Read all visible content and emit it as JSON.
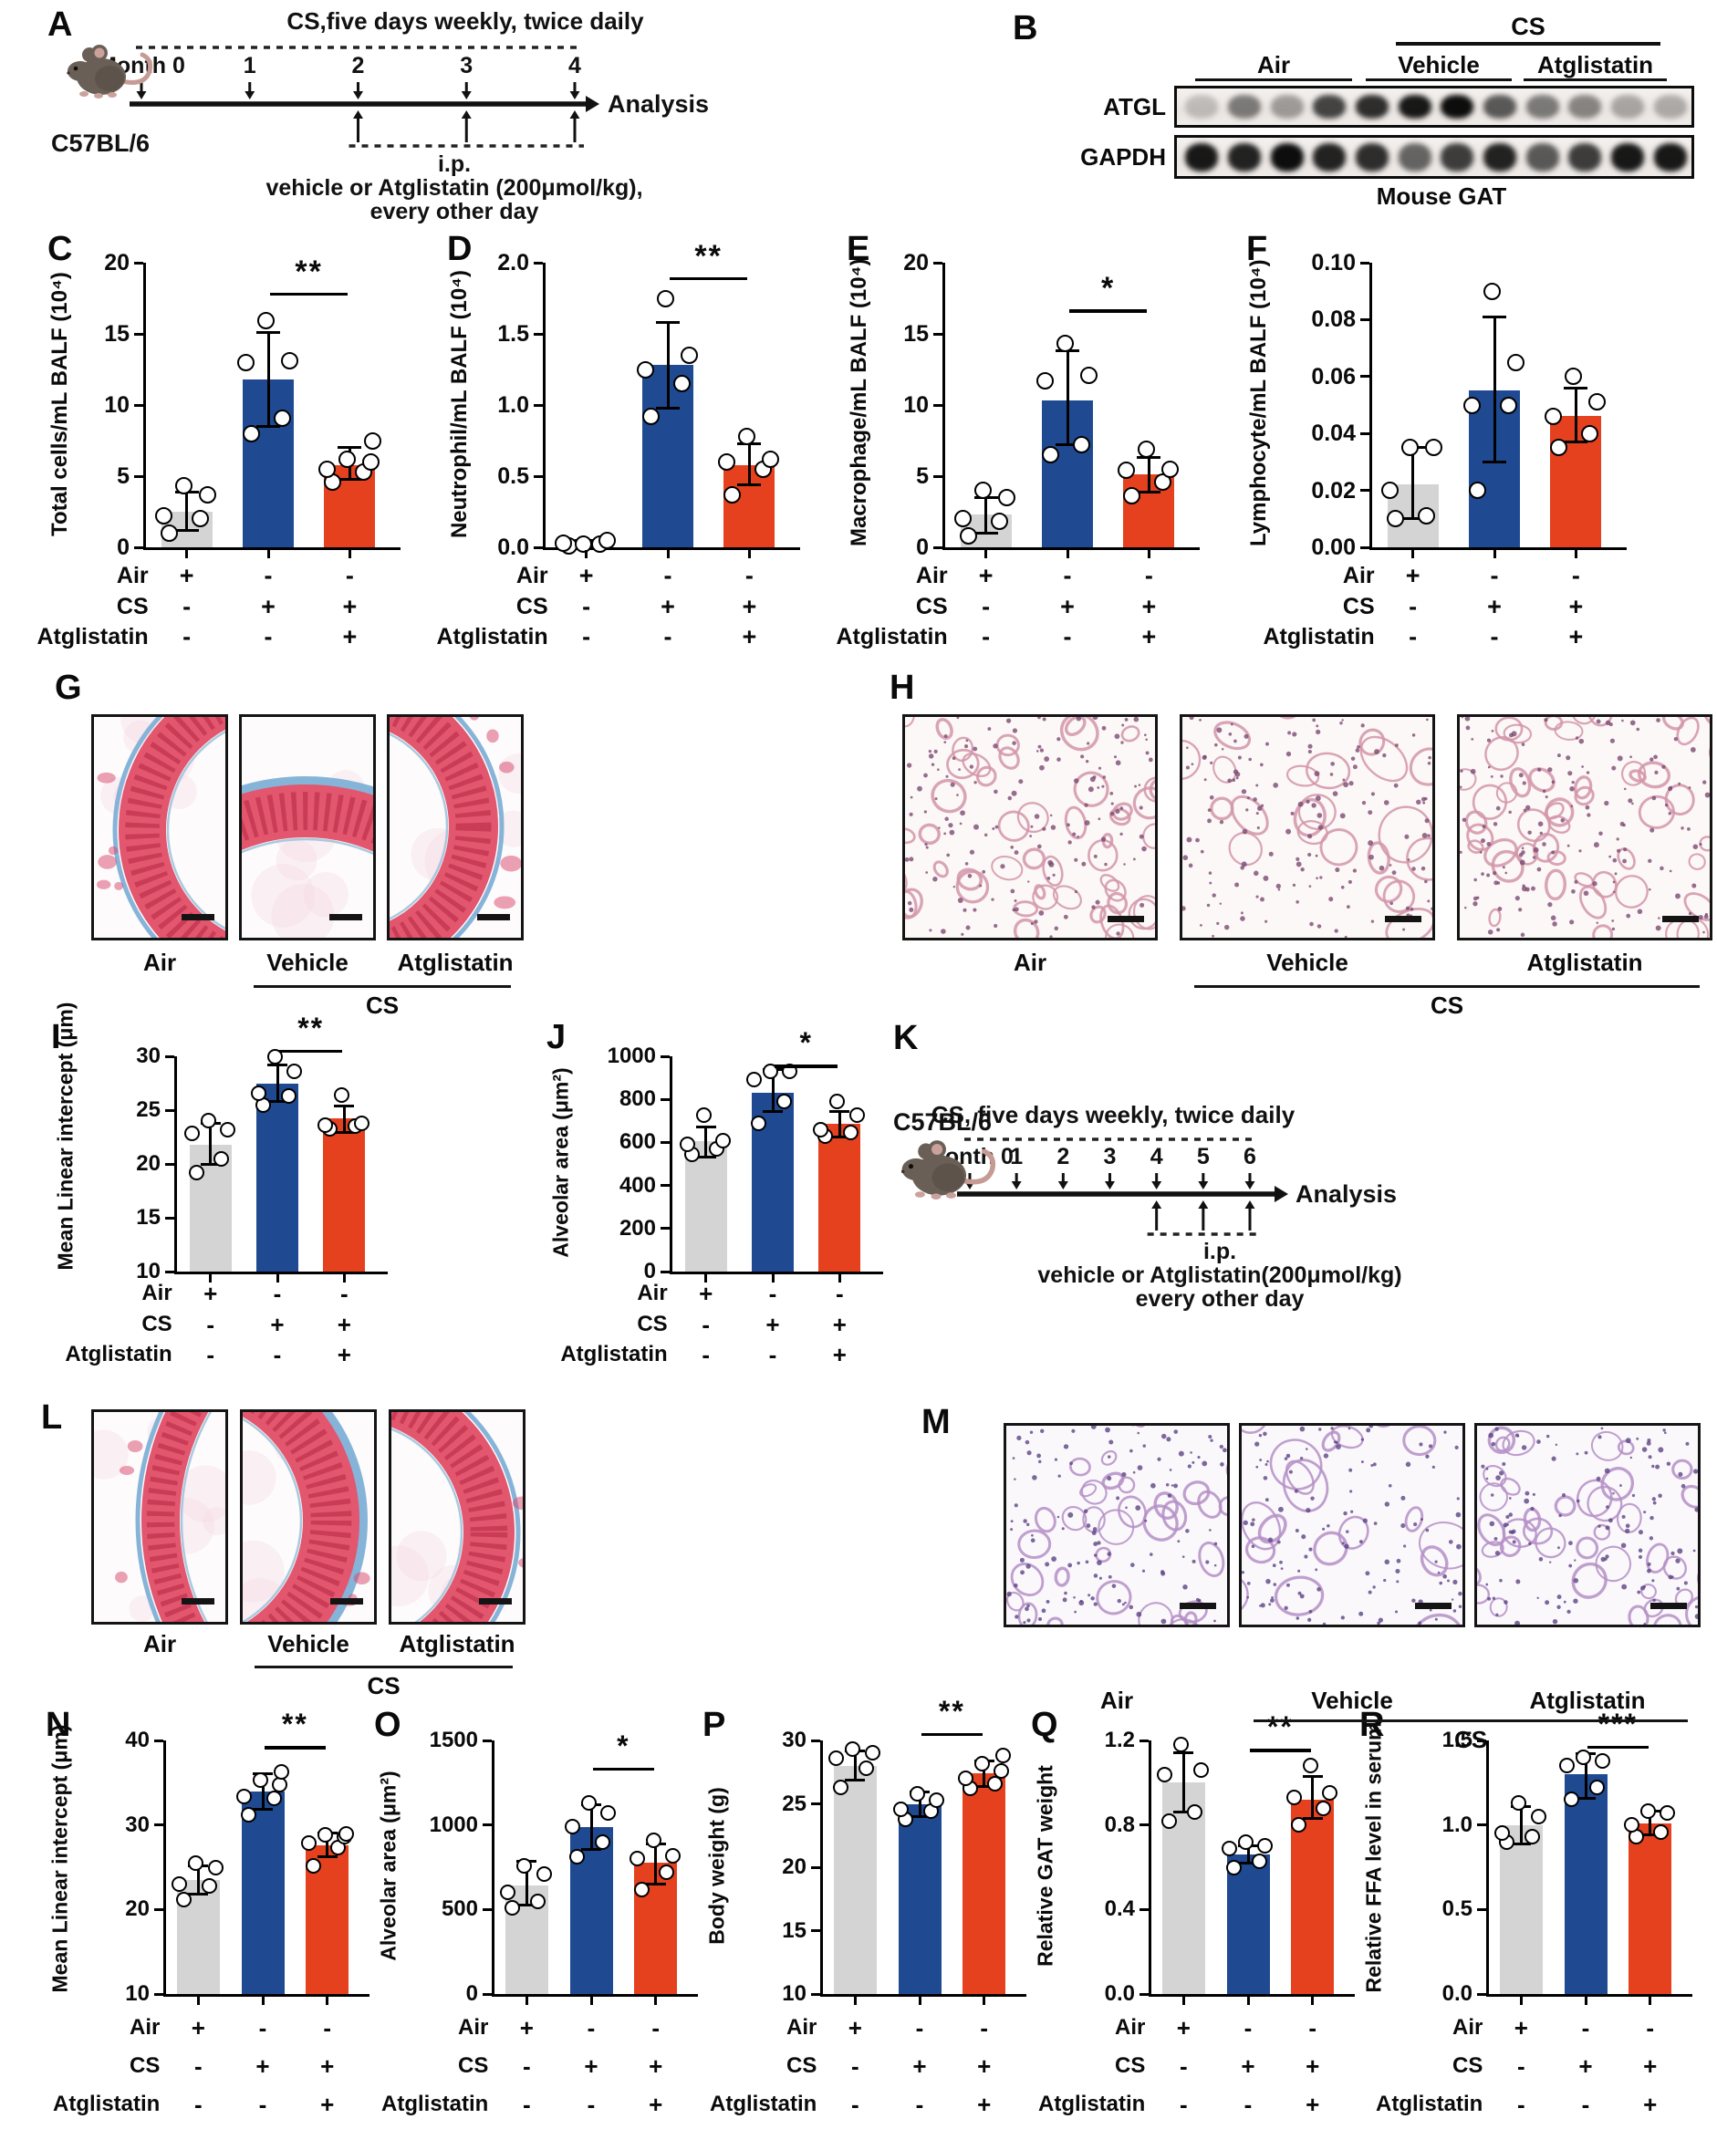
{
  "colors": {
    "bar_gray": "#d4d4d4",
    "bar_blue": "#1f4a92",
    "bar_red": "#e6411f",
    "axis": "#000000",
    "point_fill": "#ffffff"
  },
  "dose_table": {
    "rows": [
      {
        "label": "Air",
        "signs": [
          "+",
          "-",
          "-"
        ]
      },
      {
        "label": "CS",
        "signs": [
          "-",
          "+",
          "+"
        ]
      },
      {
        "label": "Atglistatin",
        "signs": [
          "-",
          "-",
          "+"
        ]
      }
    ]
  },
  "timelines": {
    "A": {
      "letter": "A",
      "strain": "C57BL/6",
      "title": "CS,five days weekly, twice daily",
      "months": [
        "Month 0",
        "1",
        "2",
        "3",
        "4"
      ],
      "analysis_label": "Analysis",
      "ip_start_month_index": 2,
      "ip_lines": [
        "i.p.",
        "vehicle or Atglistatin (200μmol/kg),",
        "every other day"
      ]
    },
    "K": {
      "letter": "K",
      "strain": "C57BL/6",
      "title": "CS, five days weekly, twice daily",
      "months": [
        "Month 0",
        "1",
        "2",
        "3",
        "4",
        "5",
        "6"
      ],
      "analysis_label": "Analysis",
      "ip_start_month_index": 4,
      "ip_lines": [
        "i.p.",
        "vehicle or Atglistatin(200μmol/kg)",
        "every other day"
      ]
    }
  },
  "blot": {
    "letter": "B",
    "cs_label": "CS",
    "group_labels": [
      "Air",
      "Vehicle",
      "Atglistatin"
    ],
    "lanes_per_group": 4,
    "targets": [
      {
        "label": "ATGL",
        "band_intensities": [
          0.2,
          0.5,
          0.35,
          0.75,
          0.85,
          0.95,
          1.0,
          0.65,
          0.5,
          0.45,
          0.3,
          0.28
        ]
      },
      {
        "label": "GAPDH",
        "band_intensities": [
          0.95,
          0.9,
          1.0,
          0.9,
          0.85,
          0.6,
          0.78,
          0.9,
          0.65,
          0.78,
          0.95,
          0.95
        ]
      }
    ],
    "caption": "Mouse GAT"
  },
  "histology": {
    "G": {
      "letter": "G",
      "stain": "trichrome",
      "image_labels": [
        "Air",
        "Vehicle",
        "Atglistatin"
      ],
      "cs_label": "CS"
    },
    "H": {
      "letter": "H",
      "stain": "he-pink",
      "image_labels": [
        "Air",
        "Vehicle",
        "Atglistatin"
      ],
      "cs_label": "CS"
    },
    "L": {
      "letter": "L",
      "stain": "trichrome",
      "image_labels": [
        "Air",
        "Vehicle",
        "Atglistatin"
      ],
      "cs_label": "CS"
    },
    "M": {
      "letter": "M",
      "stain": "he-purple",
      "image_labels": [
        "Air",
        "Vehicle",
        "Atglistatin"
      ],
      "cs_label": "CS"
    }
  },
  "chart_data": [
    {
      "panel": "C",
      "type": "bar",
      "ylabel": "Total cells/mL BALF (10⁴)",
      "ylim": [
        0,
        20
      ],
      "yticks": [
        0,
        5,
        10,
        15,
        20
      ],
      "ytick_labels": [
        "0",
        "5",
        "10",
        "15",
        "20"
      ],
      "categories": [
        "Air",
        "CS + vehicle",
        "CS + Atglistatin"
      ],
      "bar_colors": [
        "gray",
        "blue",
        "red"
      ],
      "values": [
        2.5,
        11.8,
        5.8
      ],
      "errors": [
        [
          1.2,
          3.9
        ],
        [
          8.5,
          15.1
        ],
        [
          4.8,
          7.0
        ]
      ],
      "points": [
        [
          1.0,
          2.0,
          2.2,
          3.7,
          4.3
        ],
        [
          8.0,
          9.1,
          13.0,
          13.1,
          15.9
        ],
        [
          4.6,
          5.3,
          5.5,
          6.0,
          6.2,
          7.5
        ]
      ],
      "sig": {
        "label": "**",
        "between": [
          1,
          2
        ],
        "y": 17.9
      }
    },
    {
      "panel": "D",
      "type": "bar",
      "ylabel": "Neutrophil/mL BALF (10⁴)",
      "ylim": [
        0,
        2
      ],
      "yticks": [
        0,
        0.5,
        1.0,
        1.5,
        2.0
      ],
      "ytick_labels": [
        "0.0",
        "0.5",
        "1.0",
        "1.5",
        "2.0"
      ],
      "categories": [
        "Air",
        "CS + vehicle",
        "CS + Atglistatin"
      ],
      "bar_colors": [
        "gray",
        "blue",
        "red"
      ],
      "values": [
        0.03,
        1.28,
        0.58
      ],
      "errors": [
        [
          0.01,
          0.05
        ],
        [
          0.98,
          1.58
        ],
        [
          0.44,
          0.73
        ]
      ],
      "points": [
        [
          0.01,
          0.02,
          0.03,
          0.05,
          0.02
        ],
        [
          0.92,
          1.15,
          1.25,
          1.35,
          1.75
        ],
        [
          0.37,
          0.55,
          0.6,
          0.62,
          0.78
        ]
      ],
      "sig": {
        "label": "**",
        "between": [
          1,
          2
        ],
        "y": 1.9
      }
    },
    {
      "panel": "E",
      "type": "bar",
      "ylabel": "Macrophage/mL BALF (10⁴)",
      "ylim": [
        0,
        20
      ],
      "yticks": [
        0,
        5,
        10,
        15,
        20
      ],
      "ytick_labels": [
        "0",
        "5",
        "10",
        "15",
        "20"
      ],
      "categories": [
        "Air",
        "CS + vehicle",
        "CS + Atglistatin"
      ],
      "bar_colors": [
        "gray",
        "blue",
        "red"
      ],
      "values": [
        2.3,
        10.3,
        5.1
      ],
      "errors": [
        [
          1.0,
          3.5
        ],
        [
          7.2,
          13.8
        ],
        [
          3.9,
          6.3
        ]
      ],
      "points": [
        [
          0.8,
          1.8,
          2.0,
          3.5,
          4.0
        ],
        [
          6.5,
          7.2,
          11.7,
          12.1,
          14.3
        ],
        [
          3.6,
          4.6,
          5.4,
          5.5,
          6.9
        ]
      ],
      "sig": {
        "label": "*",
        "between": [
          1,
          2
        ],
        "y": 16.7
      }
    },
    {
      "panel": "F",
      "type": "bar",
      "ylabel": "Lymphocyte/mL BALF (10⁴)",
      "ylim": [
        0,
        0.1
      ],
      "yticks": [
        0,
        0.02,
        0.04,
        0.06,
        0.08,
        0.1
      ],
      "ytick_labels": [
        "0.00",
        "0.02",
        "0.04",
        "0.06",
        "0.08",
        "0.10"
      ],
      "categories": [
        "Air",
        "CS + vehicle",
        "CS + Atglistatin"
      ],
      "bar_colors": [
        "gray",
        "blue",
        "red"
      ],
      "values": [
        0.022,
        0.055,
        0.046
      ],
      "errors": [
        [
          0.01,
          0.035
        ],
        [
          0.03,
          0.081
        ],
        [
          0.037,
          0.056
        ]
      ],
      "points": [
        [
          0.01,
          0.011,
          0.02,
          0.035,
          0.035
        ],
        [
          0.02,
          0.05,
          0.05,
          0.065,
          0.09
        ],
        [
          0.035,
          0.04,
          0.046,
          0.051,
          0.06
        ]
      ],
      "sig": null
    },
    {
      "panel": "I",
      "type": "bar",
      "ylabel": "Mean Linear intercept (μm)",
      "ylim": [
        10,
        30
      ],
      "yticks": [
        10,
        15,
        20,
        25,
        30
      ],
      "ytick_labels": [
        "10",
        "15",
        "20",
        "25",
        "30"
      ],
      "categories": [
        "Air",
        "CS + vehicle",
        "CS + Atglistatin"
      ],
      "bar_colors": [
        "gray",
        "blue",
        "red"
      ],
      "values": [
        21.8,
        27.5,
        24.2
      ],
      "errors": [
        [
          20.0,
          23.8
        ],
        [
          25.8,
          29.2
        ],
        [
          22.9,
          25.4
        ]
      ],
      "points": [
        [
          19.2,
          20.5,
          22.8,
          23.2,
          24.0
        ],
        [
          25.5,
          26.3,
          26.6,
          28.6,
          30.0
        ],
        [
          23.3,
          23.5,
          23.6,
          23.8,
          26.4
        ]
      ],
      "sig": {
        "label": "**",
        "between": [
          1,
          2
        ],
        "y": 30.6
      }
    },
    {
      "panel": "J",
      "type": "bar",
      "ylabel": "Alveolar area (μm²)",
      "ylim": [
        0,
        1000
      ],
      "yticks": [
        0,
        200,
        400,
        600,
        800,
        1000
      ],
      "ytick_labels": [
        "0",
        "200",
        "400",
        "600",
        "800",
        "1000"
      ],
      "categories": [
        "Air",
        "CS + vehicle",
        "CS + Atglistatin"
      ],
      "bar_colors": [
        "gray",
        "blue",
        "red"
      ],
      "values": [
        605,
        830,
        685
      ],
      "errors": [
        [
          530,
          670
        ],
        [
          745,
          940
        ],
        [
          625,
          745
        ]
      ],
      "points": [
        [
          545,
          570,
          590,
          610,
          725
        ],
        [
          690,
          790,
          890,
          930,
          930
        ],
        [
          630,
          645,
          660,
          725,
          790
        ]
      ],
      "sig": {
        "label": "*",
        "between": [
          1,
          2
        ],
        "y": 960
      }
    },
    {
      "panel": "N",
      "type": "bar",
      "ylabel": "Mean Linear intercept (μm)",
      "ylim": [
        10,
        40
      ],
      "yticks": [
        10,
        20,
        30,
        40
      ],
      "ytick_labels": [
        "10",
        "20",
        "30",
        "40"
      ],
      "categories": [
        "Air",
        "CS + vehicle",
        "CS + Atglistatin"
      ],
      "bar_colors": [
        "gray",
        "blue",
        "red"
      ],
      "values": [
        23.5,
        34.0,
        27.6
      ],
      "errors": [
        [
          21.8,
          25.2
        ],
        [
          31.9,
          36.1
        ],
        [
          26.2,
          29.0
        ]
      ],
      "points": [
        [
          21.2,
          22.8,
          23.0,
          24.9,
          25.5
        ],
        [
          31.2,
          33.2,
          33.4,
          34.8,
          35.3,
          36.3
        ],
        [
          25.2,
          27.3,
          27.9,
          28.6,
          28.8,
          28.9
        ]
      ],
      "sig": {
        "label": "**",
        "between": [
          1,
          2
        ],
        "y": 39.3
      }
    },
    {
      "panel": "O",
      "type": "bar",
      "ylabel": "Alveolar area (μm²)",
      "ylim": [
        0,
        1500
      ],
      "yticks": [
        0,
        500,
        1000,
        1500
      ],
      "ytick_labels": [
        "0",
        "500",
        "1000",
        "1500"
      ],
      "categories": [
        "Air",
        "CS + vehicle",
        "CS + Atglistatin"
      ],
      "bar_colors": [
        "gray",
        "blue",
        "red"
      ],
      "values": [
        640,
        990,
        775
      ],
      "errors": [
        [
          525,
          785
        ],
        [
          855,
          1120
        ],
        [
          650,
          890
        ]
      ],
      "points": [
        [
          510,
          545,
          600,
          710,
          760
        ],
        [
          810,
          900,
          990,
          1070,
          1130
        ],
        [
          620,
          720,
          800,
          820,
          910
        ]
      ],
      "sig": {
        "label": "*",
        "between": [
          1,
          2
        ],
        "y": 1340
      }
    },
    {
      "panel": "P",
      "type": "bar",
      "ylabel": "Body weight (g)",
      "ylim": [
        10,
        30
      ],
      "yticks": [
        10,
        15,
        20,
        25,
        30
      ],
      "ytick_labels": [
        "10",
        "15",
        "20",
        "25",
        "30"
      ],
      "categories": [
        "Air",
        "CS + vehicle",
        "CS + Atglistatin"
      ],
      "bar_colors": [
        "gray",
        "blue",
        "red"
      ],
      "values": [
        28.0,
        25.0,
        27.4
      ],
      "errors": [
        [
          26.9,
          29.2
        ],
        [
          24.0,
          25.9
        ],
        [
          26.4,
          28.4
        ]
      ],
      "points": [
        [
          26.3,
          27.8,
          28.6,
          29.0,
          29.3
        ],
        [
          23.8,
          24.4,
          24.6,
          25.3,
          25.8
        ],
        [
          26.2,
          26.6,
          27.0,
          27.6,
          28.2,
          28.8
        ]
      ],
      "sig": {
        "label": "**",
        "between": [
          1,
          2
        ],
        "y": 30.6
      }
    },
    {
      "panel": "Q",
      "type": "bar",
      "ylabel": "Relative GAT weight",
      "ylim": [
        0,
        1.2
      ],
      "yticks": [
        0,
        0.4,
        0.8,
        1.2
      ],
      "ytick_labels": [
        "0.0",
        "0.4",
        "0.8",
        "1.2"
      ],
      "categories": [
        "Air",
        "CS + vehicle",
        "CS + Atglistatin"
      ],
      "bar_colors": [
        "gray",
        "blue",
        "red"
      ],
      "values": [
        1.0,
        0.66,
        0.92
      ],
      "errors": [
        [
          0.86,
          1.14
        ],
        [
          0.62,
          0.7
        ],
        [
          0.83,
          1.03
        ]
      ],
      "points": [
        [
          0.82,
          0.86,
          1.04,
          1.06,
          1.18
        ],
        [
          0.6,
          0.63,
          0.69,
          0.7,
          0.72
        ],
        [
          0.8,
          0.88,
          0.93,
          0.95,
          1.08
        ]
      ],
      "sig": {
        "label": "**",
        "between": [
          1,
          2
        ],
        "y": 1.16
      }
    },
    {
      "panel": "R",
      "type": "bar",
      "ylabel": "Relative FFA level in serum",
      "ylim": [
        0,
        1.5
      ],
      "yticks": [
        0,
        0.5,
        1.0,
        1.5
      ],
      "ytick_labels": [
        "0.0",
        "0.5",
        "1.0",
        "1.5"
      ],
      "categories": [
        "Air",
        "CS + vehicle",
        "CS + Atglistatin"
      ],
      "bar_colors": [
        "gray",
        "blue",
        "red"
      ],
      "values": [
        1.0,
        1.3,
        1.01
      ],
      "errors": [
        [
          0.89,
          1.11
        ],
        [
          1.16,
          1.42
        ],
        [
          0.94,
          1.08
        ]
      ],
      "points": [
        [
          0.9,
          0.93,
          0.95,
          1.05,
          1.13
        ],
        [
          1.15,
          1.22,
          1.35,
          1.38,
          1.4
        ],
        [
          0.93,
          0.96,
          1.0,
          1.07,
          1.08
        ]
      ],
      "sig": {
        "label": "***",
        "between": [
          1,
          2
        ],
        "y": 1.47
      }
    }
  ]
}
